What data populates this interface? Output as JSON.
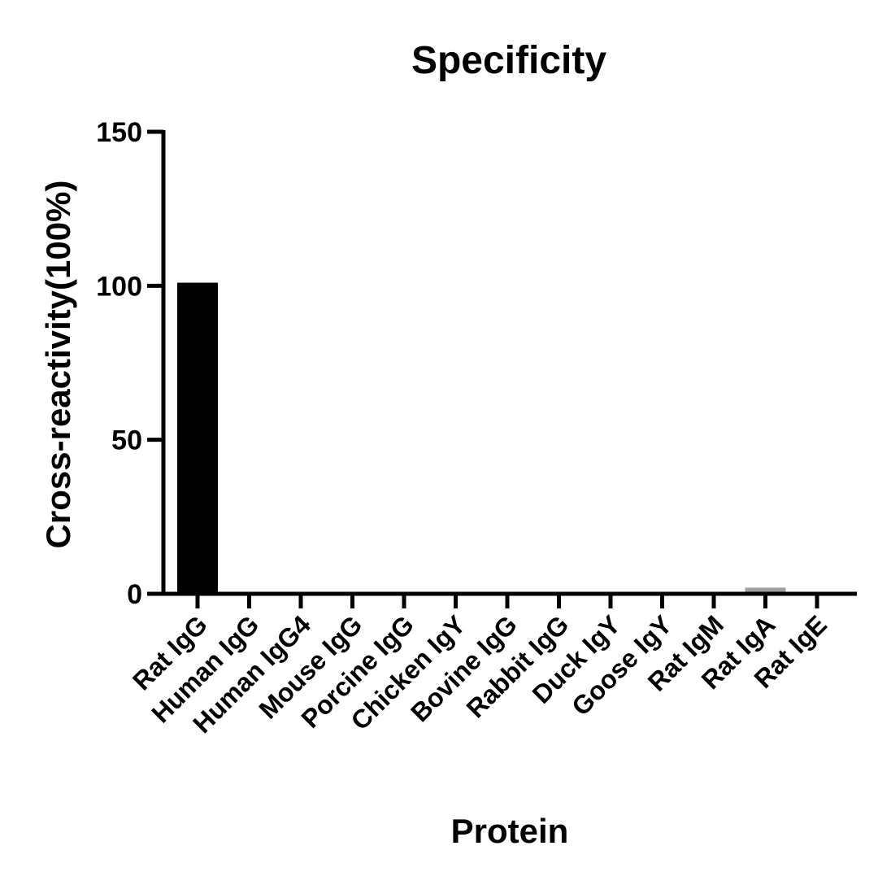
{
  "chart_data": {
    "type": "bar",
    "title": "Specificity",
    "xlabel": "Protein",
    "ylabel": "Cross-reactivity(100%)",
    "ylim": [
      0,
      150
    ],
    "yticks": [
      0,
      50,
      100,
      150
    ],
    "categories": [
      "Rat IgG",
      "Human IgG",
      "Human IgG4",
      "Mouse IgG",
      "Porcine IgG",
      "Chicken IgY",
      "Bovine IgG",
      "Rabbit IgG",
      "Duck IgY",
      "Goose IgY",
      "Rat IgM",
      "Rat IgA",
      "Rat IgE"
    ],
    "values": [
      101,
      0,
      0,
      0,
      0,
      0,
      0,
      0,
      0,
      0,
      0,
      2,
      0
    ],
    "bar_colors": [
      "#000000",
      "#000000",
      "#000000",
      "#000000",
      "#000000",
      "#000000",
      "#000000",
      "#000000",
      "#000000",
      "#000000",
      "#000000",
      "#a0a0a0",
      "#000000"
    ],
    "grid": false,
    "legend": "none"
  }
}
